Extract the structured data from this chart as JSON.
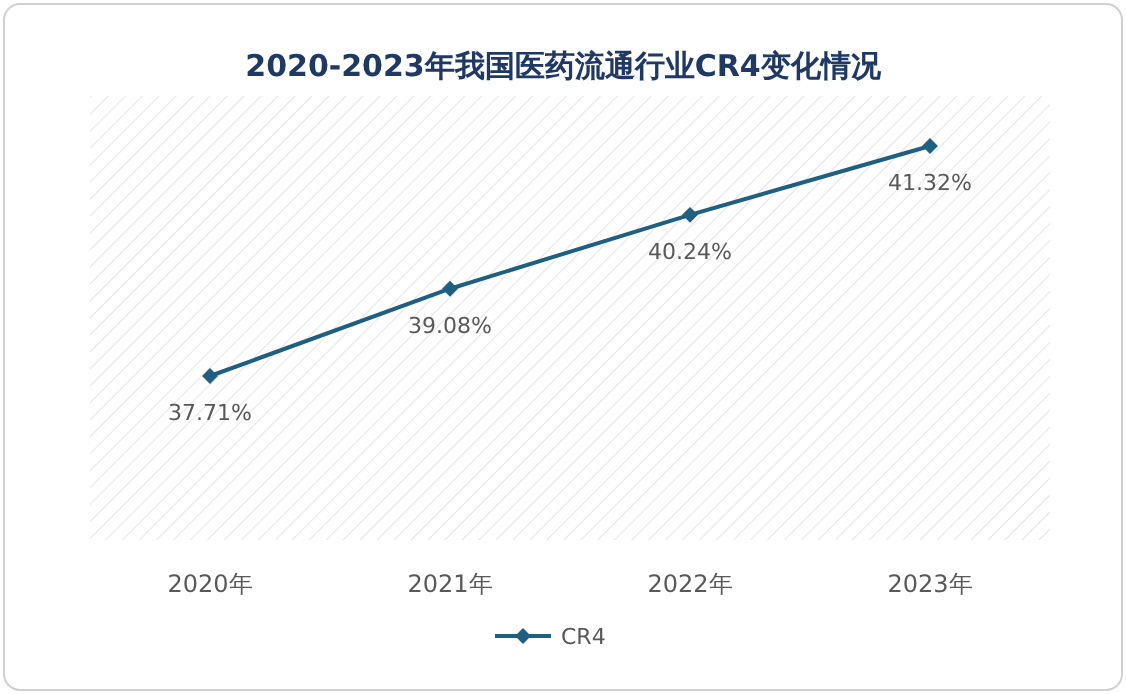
{
  "chart_data": {
    "type": "line",
    "title": "2020-2023年我国医药流通行业CR4变化情况",
    "categories": [
      "2020年",
      "2021年",
      "2022年",
      "2023年"
    ],
    "series": [
      {
        "name": "CR4",
        "color": "#1f5f7f",
        "values": [
          37.71,
          39.08,
          40.24,
          41.32
        ],
        "value_labels": [
          "37.71%",
          "39.08%",
          "40.24%",
          "41.32%"
        ]
      }
    ],
    "marker": "diamond",
    "legend": "bottom",
    "tick_labels": "x"
  }
}
